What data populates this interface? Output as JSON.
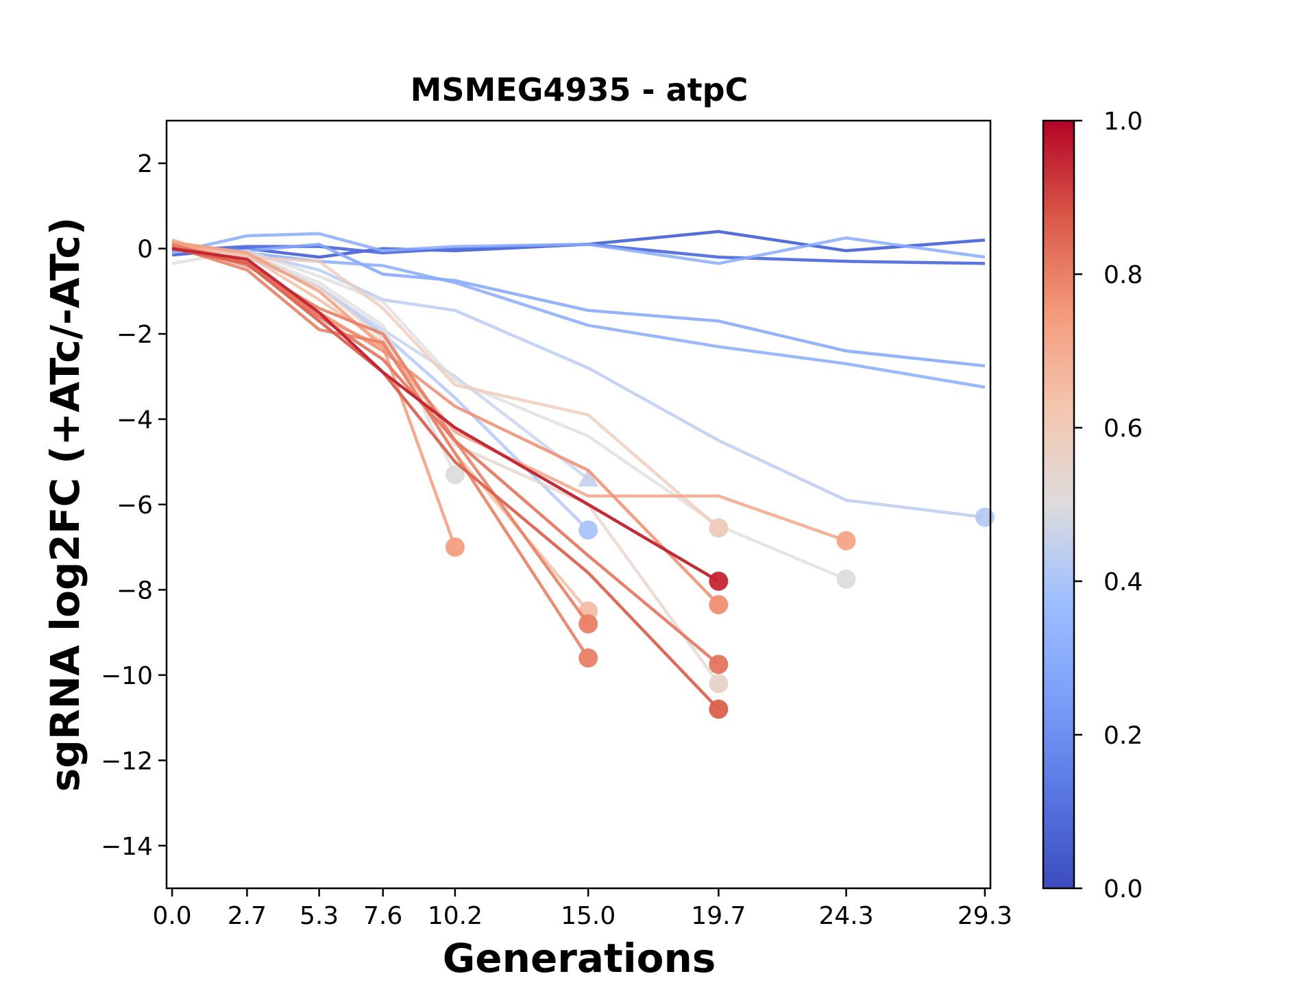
{
  "chart_data": {
    "type": "line",
    "title": "MSMEG4935 - atpC",
    "xlabel": "Generations",
    "ylabel": "sgRNA log2FC (+ATc/-ATc)",
    "xticks": [
      "0.0",
      "2.7",
      "5.3",
      "7.6",
      "10.2",
      "15.0",
      "19.7",
      "24.3",
      "29.3"
    ],
    "yticks": [
      "2",
      "0",
      "−2",
      "−4",
      "−6",
      "−8",
      "−10",
      "−12",
      "−14"
    ],
    "xlim": [
      -0.2,
      29.5
    ],
    "ylim": [
      -15,
      3
    ],
    "grid": false,
    "colorbar": {
      "colormap": "coolwarm",
      "range": [
        0,
        1
      ],
      "ticks": [
        "0.0",
        "0.2",
        "0.4",
        "0.6",
        "0.8",
        "1.0"
      ]
    },
    "series": [
      {
        "c": 0.08,
        "x": [
          0,
          2.7,
          5.3,
          7.6,
          10.2,
          15.0,
          19.7,
          24.3,
          29.3
        ],
        "y": [
          -0.15,
          0.0,
          -0.2,
          0.0,
          -0.05,
          0.1,
          0.4,
          -0.05,
          0.2
        ]
      },
      {
        "c": 0.1,
        "x": [
          0,
          2.7,
          5.3,
          7.6,
          10.2,
          15.0,
          19.7,
          24.3,
          29.3
        ],
        "y": [
          -0.05,
          0.05,
          0.05,
          -0.1,
          0.0,
          0.1,
          -0.2,
          -0.3,
          -0.35
        ]
      },
      {
        "c": 0.3,
        "x": [
          0,
          2.7,
          5.3,
          7.6,
          10.2,
          15.0,
          19.7,
          24.3,
          29.3
        ],
        "y": [
          -0.1,
          0.3,
          0.35,
          -0.05,
          0.05,
          0.1,
          -0.35,
          0.25,
          -0.2
        ]
      },
      {
        "c": 0.28,
        "x": [
          0,
          2.7,
          5.3,
          7.6,
          10.2,
          15.0,
          19.7,
          24.3,
          29.3
        ],
        "y": [
          0.0,
          -0.05,
          0.1,
          -0.6,
          -0.75,
          -1.45,
          -1.7,
          -2.4,
          -2.75
        ]
      },
      {
        "c": 0.3,
        "x": [
          0,
          2.7,
          5.3,
          7.6,
          10.2,
          15.0,
          19.7,
          24.3,
          29.3
        ],
        "y": [
          0.1,
          -0.1,
          -0.3,
          -0.4,
          -0.8,
          -1.8,
          -2.3,
          -2.7,
          -3.25
        ]
      },
      {
        "c": 0.42,
        "x": [
          0,
          2.7,
          5.3,
          7.6,
          10.2,
          15.0,
          19.7,
          24.3,
          29.3
        ],
        "y": [
          0.05,
          -0.1,
          -0.5,
          -1.2,
          -1.45,
          -2.8,
          -4.5,
          -5.9,
          -6.3
        ],
        "end_marker": "circle"
      },
      {
        "c": 0.5,
        "x": [
          0,
          2.7,
          5.3,
          7.6,
          10.2,
          15.0,
          19.7,
          24.3
        ],
        "y": [
          -0.35,
          -0.05,
          -0.65,
          -1.25,
          -3.1,
          -4.4,
          -6.5,
          -7.75
        ],
        "end_marker": "circle"
      },
      {
        "c": 0.5,
        "x": [
          0,
          2.7,
          5.3,
          7.6,
          10.2
        ],
        "y": [
          0.05,
          -0.1,
          -0.8,
          -1.8,
          -5.3
        ],
        "end_marker": "circle"
      },
      {
        "c": 0.4,
        "x": [
          0,
          2.7,
          5.3,
          7.6,
          10.2,
          15.0
        ],
        "y": [
          0.15,
          -0.2,
          -0.9,
          -2.0,
          -3.5,
          -6.6
        ],
        "end_marker": "circle"
      },
      {
        "c": 0.45,
        "x": [
          0,
          2.7,
          5.3,
          7.6,
          10.2,
          15.0
        ],
        "y": [
          0.0,
          -0.2,
          -0.9,
          -1.9,
          -3.0,
          -5.4
        ],
        "end_marker": "triangle"
      },
      {
        "c": 0.6,
        "x": [
          0,
          2.7,
          5.3,
          7.6,
          10.2,
          15.0,
          19.7
        ],
        "y": [
          0.1,
          -0.2,
          -0.3,
          -1.4,
          -3.2,
          -3.9,
          -6.55
        ],
        "end_marker": "circle"
      },
      {
        "c": 0.55,
        "x": [
          0,
          2.7,
          5.3,
          7.6,
          10.2,
          15.0,
          19.7
        ],
        "y": [
          0.1,
          -0.1,
          -0.9,
          -2.1,
          -4.6,
          -6.0,
          -10.2
        ],
        "end_marker": "circle"
      },
      {
        "c": 0.65,
        "x": [
          0,
          2.7,
          5.3,
          7.6,
          10.2,
          15.0
        ],
        "y": [
          0.15,
          -0.15,
          -1.2,
          -2.2,
          -4.8,
          -8.5
        ],
        "end_marker": "circle"
      },
      {
        "c": 0.72,
        "x": [
          0,
          2.7,
          5.3,
          7.6,
          10.2,
          15.0,
          19.7,
          24.3
        ],
        "y": [
          0.2,
          -0.35,
          -1.6,
          -2.3,
          -4.3,
          -5.8,
          -5.8,
          -6.85
        ],
        "end_marker": "circle"
      },
      {
        "c": 0.74,
        "x": [
          0,
          2.7,
          5.3,
          7.6,
          10.2
        ],
        "y": [
          0.15,
          -0.1,
          -1.0,
          -2.3,
          -7.0
        ],
        "end_marker": "circle"
      },
      {
        "c": 0.77,
        "x": [
          0,
          2.7,
          5.3,
          7.6,
          10.2,
          15.0,
          19.7
        ],
        "y": [
          0.1,
          -0.35,
          -1.5,
          -2.4,
          -3.7,
          -5.2,
          -8.35
        ],
        "end_marker": "circle"
      },
      {
        "c": 0.8,
        "x": [
          0,
          2.7,
          5.3,
          7.6,
          10.2,
          15.0
        ],
        "y": [
          0.05,
          -0.5,
          -1.9,
          -2.2,
          -4.8,
          -9.6
        ],
        "end_marker": "circle"
      },
      {
        "c": 0.8,
        "x": [
          0,
          2.7,
          5.3,
          7.6,
          10.2,
          15.0
        ],
        "y": [
          0.1,
          -0.4,
          -1.4,
          -2.0,
          -4.5,
          -8.8
        ],
        "end_marker": "circle"
      },
      {
        "c": 0.82,
        "x": [
          0,
          2.7,
          5.3,
          7.6,
          10.2,
          15.0,
          19.7
        ],
        "y": [
          0.05,
          -0.3,
          -1.6,
          -2.6,
          -4.5,
          -7.2,
          -9.75
        ],
        "end_marker": "circle"
      },
      {
        "c": 0.86,
        "x": [
          0,
          2.7,
          5.3,
          7.6,
          10.2,
          15.0,
          19.7
        ],
        "y": [
          0.0,
          -0.35,
          -1.7,
          -2.9,
          -5.0,
          -7.6,
          -10.8
        ],
        "end_marker": "circle"
      },
      {
        "c": 0.95,
        "x": [
          0,
          2.7,
          5.3,
          7.6,
          10.2,
          15.0,
          19.7
        ],
        "y": [
          0.0,
          -0.25,
          -1.5,
          -2.9,
          -4.2,
          -6.0,
          -7.8
        ],
        "end_marker": "circle"
      }
    ]
  }
}
